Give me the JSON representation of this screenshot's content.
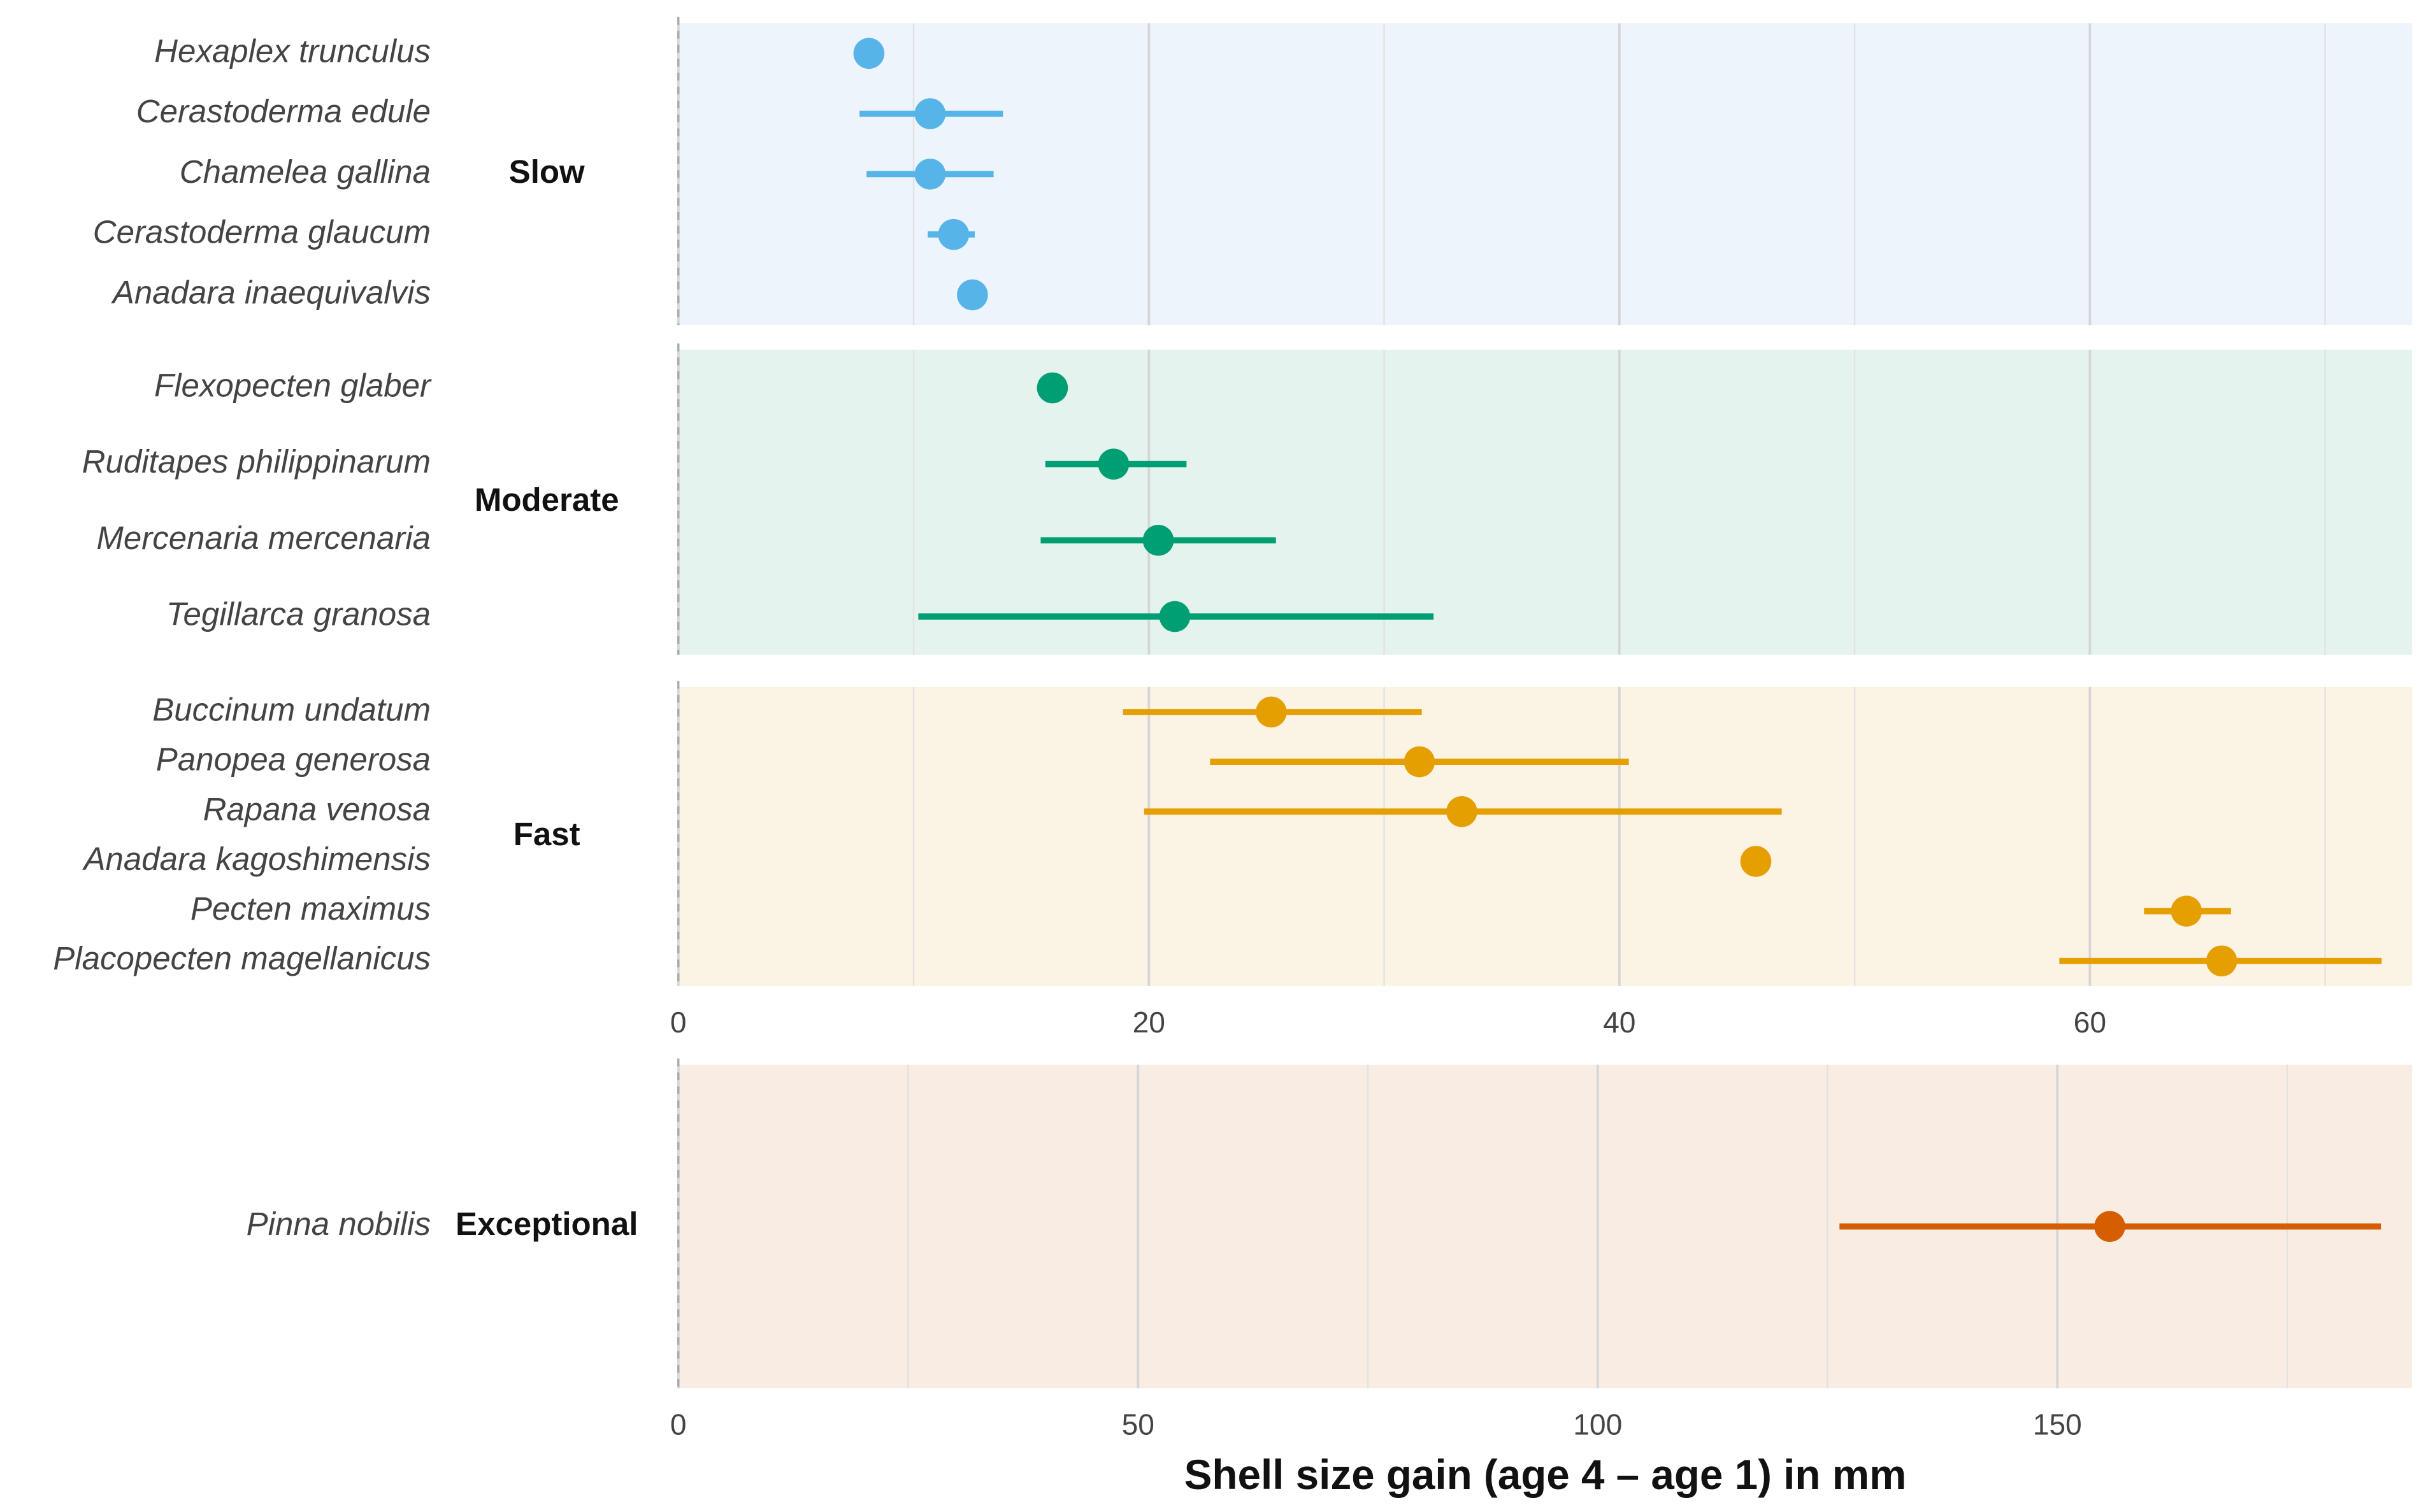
{
  "chart_data": [
    {
      "type": "dotwhisker",
      "group": "Slow",
      "color": "#56b4e9",
      "background": "#edf4fc",
      "categories": [
        "Hexaplex trunculus",
        "Cerastoderma edule",
        "Chamelea gallina",
        "Cerastoderma glaucum",
        "Anadara inaequivalvis"
      ],
      "values": [
        8.1,
        10.7,
        10.7,
        11.7,
        12.5
      ],
      "lower": [
        null,
        7.7,
        8.0,
        10.6,
        null
      ],
      "upper": [
        null,
        13.8,
        13.4,
        12.6,
        null
      ]
    },
    {
      "type": "dotwhisker",
      "group": "Moderate",
      "color": "#009e73",
      "background": "#e4f3ee",
      "categories": [
        "Flexopecten glaber",
        "Ruditapes philippinarum",
        "Mercenaria mercenaria",
        "Tegillarca granosa"
      ],
      "values": [
        15.9,
        18.5,
        20.4,
        21.1
      ],
      "lower": [
        null,
        15.6,
        15.4,
        10.2
      ],
      "upper": [
        null,
        21.6,
        25.4,
        32.1
      ]
    },
    {
      "type": "dotwhisker",
      "group": "Fast",
      "color": "#e69f00",
      "background": "#fbf3e4",
      "categories": [
        "Buccinum undatum",
        "Panopea generosa",
        "Rapana venosa",
        "Anadara kagoshimensis",
        "Pecten maximus",
        "Placopecten magellanicus"
      ],
      "values": [
        25.2,
        31.5,
        33.3,
        45.8,
        64.1,
        65.6
      ],
      "lower": [
        18.9,
        22.6,
        19.8,
        null,
        62.3,
        58.7
      ],
      "upper": [
        31.6,
        40.4,
        46.9,
        null,
        66.0,
        72.4
      ],
      "xlim": [
        0,
        73.7
      ],
      "xticks": [
        0,
        20,
        40,
        60
      ],
      "minor_xticks": [
        10,
        30,
        50,
        70
      ]
    },
    {
      "type": "dotwhisker",
      "group": "Exceptional",
      "color": "#d55e00",
      "background": "#f9ece2",
      "categories": [
        "Pinna nobilis"
      ],
      "values": [
        155.7
      ],
      "lower": [
        126.3
      ],
      "upper": [
        185.2
      ],
      "xlim": [
        0,
        188.6
      ],
      "xticks": [
        0,
        50,
        100,
        150
      ],
      "minor_xticks": [
        25,
        75,
        125,
        175
      ],
      "xlabel": "Shell size gain (age 4 – age 1) in mm"
    }
  ]
}
